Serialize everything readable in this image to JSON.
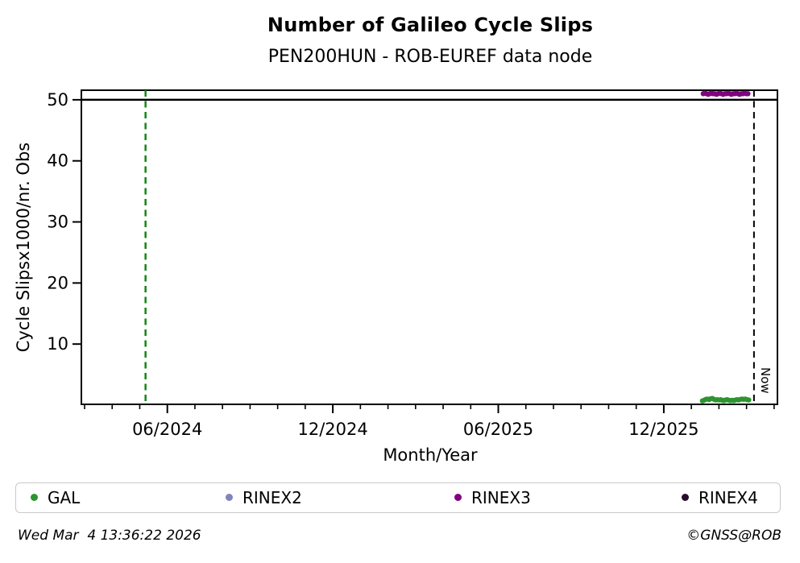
{
  "footer": {
    "timestamp": "Wed Mar  4 13:36:22 2026",
    "copyright": "©GNSS@ROB"
  },
  "chart_data": {
    "type": "scatter",
    "title": "Number of Galileo Cycle Slips",
    "subtitle": "PEN200HUN - ROB-EUREF data node",
    "xlabel": "Month/Year",
    "ylabel": "Cycle Slipsx1000/nr. Obs",
    "x_unit": "months, 0 = 03/2024 (one minor tick per month)",
    "xlim": [
      -0.146,
      25.15
    ],
    "ylim": [
      0,
      51.7
    ],
    "grid": false,
    "y_ticks": [
      10,
      20,
      30,
      40,
      50
    ],
    "x_minor_ticks": [
      0,
      1,
      2,
      3,
      4,
      5,
      6,
      7,
      8,
      9,
      10,
      11,
      12,
      13,
      14,
      15,
      16,
      17,
      18,
      19,
      20,
      21,
      22,
      23,
      24,
      25
    ],
    "x_major_ticks": [
      {
        "m": 3,
        "label": "06/2024"
      },
      {
        "m": 9,
        "label": "12/2024"
      },
      {
        "m": 15,
        "label": "06/2025"
      },
      {
        "m": 21,
        "label": "12/2025"
      }
    ],
    "threshold_line": {
      "y": 50,
      "color": "#000000",
      "style": "solid",
      "width": 2.5
    },
    "event_line": {
      "m": 2.21,
      "color": "#108810",
      "style": "dashed",
      "width": 2.5
    },
    "now_line": {
      "m": 24.27,
      "label": "Now",
      "color": "#000000",
      "style": "dashed",
      "width": 2
    },
    "legend_position": "below",
    "series": [
      {
        "name": "GAL",
        "color": "#2e9430",
        "marker": "dot",
        "points": [
          [
            22.4,
            0.7
          ],
          [
            22.46,
            0.8
          ],
          [
            22.52,
            0.95
          ],
          [
            22.58,
            1.0
          ],
          [
            22.64,
            0.9
          ],
          [
            22.7,
            1.05
          ],
          [
            22.76,
            1.1
          ],
          [
            22.82,
            0.95
          ],
          [
            22.88,
            0.85
          ],
          [
            22.94,
            0.9
          ],
          [
            23.0,
            0.85
          ],
          [
            23.06,
            0.9
          ],
          [
            23.12,
            0.8
          ],
          [
            23.18,
            0.75
          ],
          [
            23.24,
            0.85
          ],
          [
            23.3,
            0.9
          ],
          [
            23.36,
            0.8
          ],
          [
            23.42,
            0.75
          ],
          [
            23.48,
            0.8
          ],
          [
            23.54,
            0.75
          ],
          [
            23.6,
            0.85
          ],
          [
            23.66,
            0.9
          ],
          [
            23.72,
            0.85
          ],
          [
            23.78,
            0.95
          ],
          [
            23.84,
            1.0
          ],
          [
            23.9,
            0.95
          ],
          [
            23.96,
            1.0
          ],
          [
            24.02,
            0.9
          ],
          [
            24.08,
            0.85
          ]
        ]
      },
      {
        "name": "RINEX2",
        "color": "#8183bd",
        "marker": "dot",
        "points": []
      },
      {
        "name": "RINEX3",
        "color": "#800080",
        "marker": "dot",
        "points": [
          [
            22.43,
            51.0
          ],
          [
            22.49,
            51.1
          ],
          [
            22.55,
            51.0
          ],
          [
            22.61,
            50.9
          ],
          [
            22.67,
            51.0
          ],
          [
            22.73,
            51.1
          ],
          [
            22.79,
            51.0
          ],
          [
            22.85,
            51.0
          ],
          [
            22.91,
            50.9
          ],
          [
            22.97,
            51.0
          ],
          [
            23.03,
            51.1
          ],
          [
            23.09,
            51.0
          ],
          [
            23.15,
            50.9
          ],
          [
            23.21,
            51.0
          ],
          [
            23.27,
            51.0
          ],
          [
            23.33,
            51.1
          ],
          [
            23.39,
            51.0
          ],
          [
            23.45,
            50.9
          ],
          [
            23.51,
            51.0
          ],
          [
            23.57,
            51.0
          ],
          [
            23.63,
            51.1
          ],
          [
            23.69,
            51.0
          ],
          [
            23.75,
            50.9
          ],
          [
            23.81,
            51.0
          ],
          [
            23.87,
            51.0
          ],
          [
            23.93,
            51.1
          ],
          [
            23.99,
            51.0
          ],
          [
            24.05,
            51.0
          ]
        ]
      },
      {
        "name": "RINEX4",
        "color": "#2a0a2e",
        "marker": "dot",
        "points": []
      }
    ]
  }
}
